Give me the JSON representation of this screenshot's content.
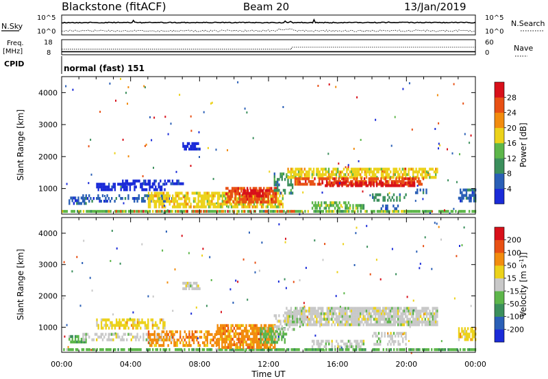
{
  "header": {
    "station": "Blackstone (fitACF)",
    "beam": "Beam 20",
    "date": "13/Jan/2019"
  },
  "top_panels": {
    "nsky_label": "N.Sky",
    "nsearch_label": "N.Search",
    "noise_top": "10^5",
    "noise_bottom": "10^0",
    "freq_label_line1": "Freq.",
    "freq_label_line2": "[MHz]",
    "freq_ticks": [
      "18",
      "8"
    ],
    "nave_label": "Nave",
    "nave_ticks": [
      "60",
      "0"
    ],
    "cpid_label": "CPID",
    "cpid_value": "normal (fast) 151",
    "freq_step_time": "13:20",
    "freq_mhz": 10,
    "nave_before": 22,
    "nave_after": 30
  },
  "chart_data": [
    {
      "type": "heatmap",
      "name": "power",
      "ylabel": "Slant Range [km]",
      "xlabel": "",
      "ylim": [
        200,
        4500
      ],
      "y_ticks": [
        "1000",
        "2000",
        "3000",
        "4000"
      ],
      "x_ticks": [
        "00:00",
        "04:00",
        "08:00",
        "12:00",
        "16:00",
        "20:00",
        "00:00"
      ],
      "colorbar_label": "Power [dB]",
      "colorbar_ticks": [
        "4",
        "8",
        "12",
        "16",
        "20",
        "24",
        "28"
      ],
      "colors": [
        "#1a2bd8",
        "#2a5fb6",
        "#3b8f5c",
        "#5db64a",
        "#ecd21a",
        "#f28c0e",
        "#e85014",
        "#d8101a"
      ],
      "regions": [
        {
          "t0": 0.0,
          "t1": 24.0,
          "r0": 250,
          "r1": 330,
          "level": 3,
          "density": 0.75
        },
        {
          "t0": 0.5,
          "t1": 13.5,
          "r0": 260,
          "r1": 330,
          "level": 6,
          "density": 0.25
        },
        {
          "t0": 0.4,
          "t1": 1.4,
          "r0": 520,
          "r1": 750,
          "level": 1,
          "density": 0.7
        },
        {
          "t0": 1.2,
          "t1": 6.5,
          "r0": 600,
          "r1": 820,
          "level": 1,
          "density": 0.45
        },
        {
          "t0": 2.0,
          "t1": 6.0,
          "r0": 1000,
          "r1": 1180,
          "level": 0,
          "density": 0.6
        },
        {
          "t0": 3.5,
          "t1": 7.0,
          "r0": 1170,
          "r1": 1280,
          "level": 0,
          "density": 0.55
        },
        {
          "t0": 7.0,
          "t1": 8.0,
          "r0": 2250,
          "r1": 2450,
          "level": 0,
          "density": 0.75
        },
        {
          "t0": 5.0,
          "t1": 12.8,
          "r0": 400,
          "r1": 900,
          "level": 4,
          "density": 0.7
        },
        {
          "t0": 9.5,
          "t1": 12.4,
          "r0": 600,
          "r1": 1050,
          "level": 6,
          "density": 0.7
        },
        {
          "t0": 10.5,
          "t1": 12.0,
          "r0": 750,
          "r1": 980,
          "level": 7,
          "density": 0.65
        },
        {
          "t0": 12.3,
          "t1": 13.5,
          "r0": 900,
          "r1": 1500,
          "level": 2,
          "density": 0.45
        },
        {
          "t0": 13.0,
          "t1": 21.8,
          "r0": 1350,
          "r1": 1650,
          "level": 4,
          "density": 0.7
        },
        {
          "t0": 13.5,
          "t1": 21.0,
          "r0": 1100,
          "r1": 1350,
          "level": 6,
          "density": 0.7
        },
        {
          "t0": 15.0,
          "t1": 20.5,
          "r0": 1080,
          "r1": 1220,
          "level": 7,
          "density": 0.6
        },
        {
          "t0": 14.5,
          "t1": 17.5,
          "r0": 400,
          "r1": 600,
          "level": 3,
          "density": 0.55
        },
        {
          "t0": 18.0,
          "t1": 20.0,
          "r0": 600,
          "r1": 850,
          "level": 2,
          "density": 0.4
        },
        {
          "t0": 18.5,
          "t1": 19.5,
          "r0": 350,
          "r1": 500,
          "level": 1,
          "density": 0.45
        },
        {
          "t0": 20.5,
          "t1": 21.2,
          "r0": 880,
          "r1": 1000,
          "level": 1,
          "density": 0.6
        },
        {
          "t0": 23.0,
          "t1": 24.0,
          "r0": 600,
          "r1": 1000,
          "level": 1,
          "density": 0.7
        }
      ]
    },
    {
      "type": "heatmap",
      "name": "velocity",
      "ylabel": "Slant Range [km]",
      "xlabel": "Time UT",
      "ylim": [
        200,
        4500
      ],
      "y_ticks": [
        "1000",
        "2000",
        "3000",
        "4000"
      ],
      "x_ticks": [
        "00:00",
        "04:00",
        "08:00",
        "12:00",
        "16:00",
        "20:00",
        "00:00"
      ],
      "colorbar_label": "Velocity [m s-1]",
      "colorbar_ticks": [
        "200",
        "100",
        "50",
        "15",
        "-15",
        "-50",
        "-100",
        "-200"
      ],
      "colors": [
        "#1a2bd8",
        "#2a5fb6",
        "#3b8f5c",
        "#5db64a",
        "#c8c8c8",
        "#ecd21a",
        "#f28c0e",
        "#e85014",
        "#d8101a"
      ],
      "regions": [
        {
          "t0": 0.0,
          "t1": 24.0,
          "r0": 250,
          "r1": 330,
          "level": 3,
          "density": 0.7
        },
        {
          "t0": 0.4,
          "t1": 1.4,
          "r0": 520,
          "r1": 750,
          "level": 3,
          "density": 0.7
        },
        {
          "t0": 1.2,
          "t1": 6.5,
          "r0": 600,
          "r1": 820,
          "level": 4,
          "density": 0.45
        },
        {
          "t0": 2.0,
          "t1": 6.0,
          "r0": 1000,
          "r1": 1280,
          "level": 5,
          "density": 0.6
        },
        {
          "t0": 7.0,
          "t1": 8.0,
          "r0": 2250,
          "r1": 2450,
          "level": 4,
          "density": 0.75
        },
        {
          "t0": 5.0,
          "t1": 9.0,
          "r0": 400,
          "r1": 900,
          "level": 6,
          "density": 0.55
        },
        {
          "t0": 9.0,
          "t1": 12.4,
          "r0": 400,
          "r1": 1100,
          "level": 6,
          "density": 0.8
        },
        {
          "t0": 11.5,
          "t1": 13.0,
          "r0": 500,
          "r1": 1000,
          "level": 3,
          "density": 0.6
        },
        {
          "t0": 12.3,
          "t1": 13.5,
          "r0": 900,
          "r1": 1500,
          "level": 4,
          "density": 0.45
        },
        {
          "t0": 13.0,
          "t1": 21.8,
          "r0": 1100,
          "r1": 1650,
          "level": 4,
          "density": 0.85
        },
        {
          "t0": 14.5,
          "t1": 17.5,
          "r0": 400,
          "r1": 600,
          "level": 4,
          "density": 0.6
        },
        {
          "t0": 18.0,
          "t1": 20.0,
          "r0": 500,
          "r1": 850,
          "level": 4,
          "density": 0.45
        },
        {
          "t0": 23.0,
          "t1": 24.0,
          "r0": 600,
          "r1": 1000,
          "level": 5,
          "density": 0.6
        }
      ]
    }
  ]
}
